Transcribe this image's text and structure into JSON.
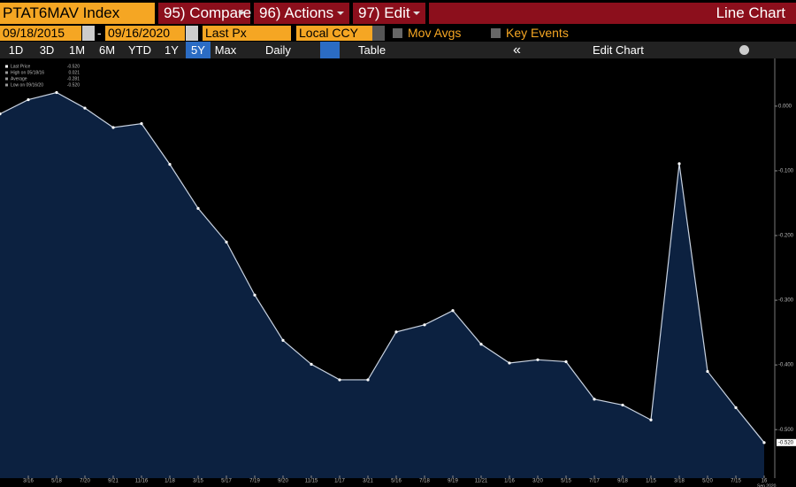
{
  "toolbar": {
    "security": "PTAT6MAV Index",
    "buttons": [
      "95) Compare",
      "96) Actions",
      "97) Edit"
    ],
    "view": "Line Chart",
    "start_date": "09/18/2015",
    "separator": "-",
    "end_date": "09/16/2020",
    "field": "Last Px",
    "currency": "Local CCY",
    "options": [
      "Mov Avgs",
      "Key Events"
    ],
    "periods": [
      "1D",
      "3D",
      "1M",
      "6M",
      "YTD",
      "1Y",
      "5Y",
      "Max"
    ],
    "active_period": "5Y",
    "frequency": "Daily",
    "table": "Table",
    "collapse": "«",
    "edit_chart": "Edit Chart"
  },
  "chart_data": {
    "type": "line",
    "legend": [
      {
        "label": "Last Price",
        "value": "-0.520"
      },
      {
        "label": "High on 05/18/16",
        "value": "0.021"
      },
      {
        "label": "Average",
        "value": "-0.281"
      },
      {
        "label": "Low on 09/16/20",
        "value": "-0.520"
      }
    ],
    "categories": [
      null,
      "3/16",
      "5/18",
      "7/20",
      "9/21",
      "11/16",
      "1/18",
      "3/15",
      "5/17",
      "7/19",
      "9/20",
      "11/15",
      "1/17",
      "3/21",
      "5/16",
      "7/18",
      "9/19",
      "11/21",
      "1/16",
      "3/20",
      "5/15",
      "7/17",
      "9/18",
      "1/15",
      "3/18",
      "5/20",
      "7/15",
      "16"
    ],
    "x_sublabel": "Sep 2020",
    "values": [
      -0.012,
      0.01,
      0.021,
      -0.003,
      -0.033,
      -0.027,
      -0.09,
      -0.158,
      -0.21,
      -0.292,
      -0.362,
      -0.399,
      -0.423,
      -0.423,
      -0.349,
      -0.338,
      -0.316,
      -0.368,
      -0.397,
      -0.392,
      -0.395,
      -0.453,
      -0.462,
      -0.485,
      -0.089,
      -0.41,
      -0.466,
      -0.52
    ],
    "value_labels": [
      null,
      null,
      null,
      null,
      null,
      null,
      null,
      null,
      null,
      null,
      null,
      null,
      null,
      null,
      null,
      null,
      null,
      null,
      null,
      null,
      null,
      null,
      null,
      null,
      null,
      null,
      null,
      "-0.520"
    ],
    "color": "#c9d3e2",
    "fill": "#0c2140",
    "ylim": [
      -0.575,
      0.071
    ],
    "yticks": [
      {
        "value": 0,
        "label": "0.000"
      },
      {
        "value": -0.1,
        "label": "-0.100"
      },
      {
        "value": -0.2,
        "label": "-0.200"
      },
      {
        "value": -0.3,
        "label": "-0.300"
      },
      {
        "value": -0.4,
        "label": "-0.400"
      },
      {
        "value": -0.5,
        "label": "-0.500"
      }
    ]
  }
}
